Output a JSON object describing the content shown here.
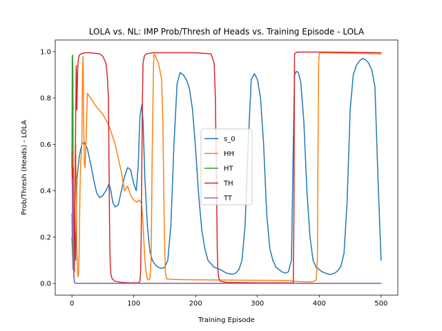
{
  "chart_data": {
    "type": "line",
    "title": "LOLA vs. NL: IMP Prob/Thresh of Heads vs. Training Episode - LOLA",
    "xlabel": "Training Episode",
    "ylabel": "Prob/Thresh (Heads) - LOLA",
    "xlim": [
      -27,
      527
    ],
    "ylim": [
      -0.05,
      1.05
    ],
    "xticks": [
      0,
      100,
      200,
      300,
      400,
      500
    ],
    "yticks": [
      0.0,
      0.2,
      0.4,
      0.6,
      0.8,
      1.0
    ],
    "ytick_labels": [
      "0.0",
      "0.2",
      "0.4",
      "0.6",
      "0.8",
      "1.0"
    ],
    "grid": false,
    "legend_position": "center",
    "series": [
      {
        "name": "s_0",
        "color": "#1f77b4",
        "x": [
          0,
          2,
          4,
          6,
          8,
          12,
          16,
          20,
          25,
          30,
          35,
          40,
          45,
          50,
          55,
          60,
          63,
          66,
          70,
          75,
          80,
          85,
          90,
          95,
          100,
          104,
          107,
          110,
          113,
          115,
          118,
          122,
          126,
          130,
          135,
          140,
          145,
          150,
          155,
          160,
          165,
          170,
          175,
          180,
          185,
          190,
          195,
          200,
          205,
          210,
          215,
          220,
          230,
          240,
          250,
          260,
          265,
          270,
          275,
          280,
          285,
          290,
          295,
          300,
          305,
          310,
          315,
          320,
          325,
          330,
          335,
          340,
          345,
          350,
          355,
          358,
          360,
          363,
          366,
          370,
          375,
          380,
          385,
          390,
          395,
          400,
          405,
          410,
          415,
          420,
          425,
          430,
          435,
          440,
          445,
          450,
          455,
          460,
          465,
          470,
          475,
          480,
          485,
          490,
          495,
          500
        ],
        "y": [
          0.2,
          0.06,
          0.3,
          0.1,
          0.45,
          0.55,
          0.6,
          0.61,
          0.58,
          0.52,
          0.45,
          0.39,
          0.37,
          0.38,
          0.4,
          0.43,
          0.4,
          0.35,
          0.33,
          0.34,
          0.4,
          0.46,
          0.5,
          0.49,
          0.43,
          0.4,
          0.5,
          0.72,
          0.77,
          0.7,
          0.45,
          0.25,
          0.14,
          0.1,
          0.08,
          0.07,
          0.065,
          0.07,
          0.1,
          0.25,
          0.6,
          0.86,
          0.91,
          0.9,
          0.88,
          0.84,
          0.75,
          0.58,
          0.38,
          0.23,
          0.15,
          0.1,
          0.07,
          0.06,
          0.045,
          0.04,
          0.045,
          0.06,
          0.1,
          0.25,
          0.6,
          0.88,
          0.905,
          0.88,
          0.8,
          0.6,
          0.3,
          0.15,
          0.1,
          0.07,
          0.06,
          0.05,
          0.045,
          0.05,
          0.1,
          0.6,
          0.9,
          0.915,
          0.91,
          0.87,
          0.7,
          0.4,
          0.2,
          0.1,
          0.07,
          0.06,
          0.05,
          0.045,
          0.04,
          0.04,
          0.045,
          0.055,
          0.075,
          0.13,
          0.35,
          0.75,
          0.9,
          0.94,
          0.96,
          0.97,
          0.965,
          0.95,
          0.92,
          0.85,
          0.45,
          0.1
        ]
      },
      {
        "name": "HH",
        "color": "#ff7f0e",
        "x": [
          0,
          1,
          2,
          3,
          4,
          5,
          6,
          7,
          8,
          9,
          10,
          11,
          12,
          13,
          14,
          15,
          16,
          17,
          18,
          19,
          20,
          21,
          22,
          25,
          30,
          40,
          50,
          60,
          70,
          80,
          85,
          90,
          95,
          100,
          105,
          108,
          112,
          114,
          116,
          118,
          120,
          122,
          124,
          126,
          128,
          130,
          132,
          133,
          135,
          140,
          145,
          147,
          149,
          151,
          153,
          155,
          160,
          180,
          200,
          250,
          300,
          350,
          360,
          370,
          380,
          390,
          395,
          397,
          398,
          399,
          400,
          401,
          402,
          410,
          450,
          500
        ],
        "y": [
          0.55,
          0.4,
          0.13,
          0.05,
          0.3,
          0.5,
          0.6,
          0.4,
          0.15,
          0.05,
          0.03,
          0.05,
          0.2,
          0.4,
          0.52,
          0.55,
          0.6,
          0.9,
          0.98,
          0.7,
          0.52,
          0.5,
          0.55,
          0.82,
          0.8,
          0.76,
          0.73,
          0.68,
          0.6,
          0.48,
          0.4,
          0.42,
          0.38,
          0.36,
          0.35,
          0.36,
          0.35,
          0.3,
          0.2,
          0.1,
          0.05,
          0.02,
          0.015,
          0.02,
          0.1,
          0.6,
          0.95,
          0.99,
          0.98,
          0.95,
          0.88,
          0.7,
          0.3,
          0.05,
          0.02,
          0.02,
          0.018,
          0.017,
          0.016,
          0.015,
          0.014,
          0.013,
          0.01,
          0.008,
          0.007,
          0.008,
          0.015,
          0.1,
          0.6,
          0.95,
          0.99,
          0.995,
          0.995,
          0.995,
          0.993,
          0.99
        ]
      },
      {
        "name": "HT",
        "color": "#2ca02c",
        "x": [
          0,
          0.5,
          1,
          1.5,
          2,
          2.5,
          3,
          4,
          6,
          10,
          20,
          500
        ],
        "y": [
          0.5,
          0.98,
          0.985,
          0.9,
          0.5,
          0.2,
          0.05,
          0.005,
          0.001,
          0.001,
          0.001,
          0.001
        ]
      },
      {
        "name": "TH",
        "color": "#d62728",
        "x": [
          0,
          1,
          2,
          3,
          4,
          5,
          6,
          7,
          8,
          9,
          10,
          12,
          15,
          20,
          30,
          45,
          50,
          55,
          57,
          59,
          60,
          61,
          62,
          63,
          65,
          70,
          80,
          90,
          100,
          105,
          108,
          110,
          111,
          112,
          113,
          114,
          115,
          117,
          120,
          130,
          150,
          200,
          225,
          230,
          232,
          234,
          235,
          236,
          237,
          238,
          240,
          250,
          300,
          350,
          355,
          357,
          358,
          359,
          360,
          362,
          365,
          370,
          400,
          450,
          500
        ],
        "y": [
          0.57,
          0.3,
          0.5,
          0.2,
          0.05,
          0.4,
          0.7,
          0.94,
          0.75,
          0.9,
          0.96,
          0.985,
          0.99,
          0.995,
          0.995,
          0.99,
          0.98,
          0.95,
          0.9,
          0.8,
          0.5,
          0.2,
          0.08,
          0.04,
          0.02,
          0.01,
          0.005,
          0.003,
          0.003,
          0.003,
          0.003,
          0.01,
          0.05,
          0.2,
          0.5,
          0.8,
          0.95,
          0.98,
          0.99,
          0.995,
          0.995,
          0.995,
          0.99,
          0.95,
          0.8,
          0.4,
          0.15,
          0.06,
          0.03,
          0.02,
          0.01,
          0.005,
          0.003,
          0.003,
          0.003,
          0.003,
          0.004,
          0.3,
          0.99,
          0.995,
          0.998,
          0.998,
          0.998,
          0.997,
          0.995
        ]
      },
      {
        "name": "TT",
        "color": "#9467bd",
        "x": [
          0,
          0.5,
          1,
          1.5,
          2,
          2.5,
          3,
          4,
          6,
          10,
          500
        ],
        "y": [
          0.3,
          0.2,
          0.4,
          0.45,
          0.35,
          0.15,
          0.03,
          0.005,
          0.001,
          0.001,
          0.001
        ]
      }
    ]
  }
}
